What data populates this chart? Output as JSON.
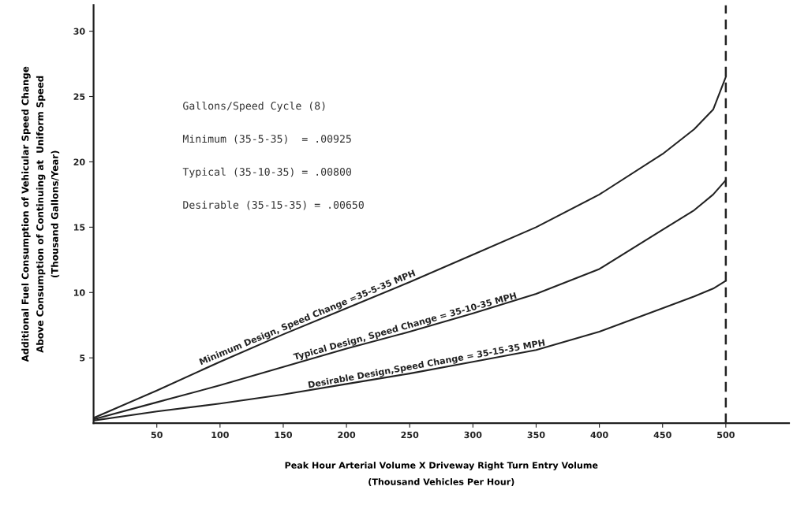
{
  "chart_data": {
    "type": "line",
    "xlabel": "Peak Hour Arterial Volume X Driveway Right Turn Entry Volume\n(Thousand Vehicles Per Hour)",
    "ylabel": "Additional Fuel Consumption of Vehicular Speed Change\nAbove Consumption of Continuing at  Uniform Speed\n(Thousand Gallons/Year)",
    "x": [
      0,
      50,
      100,
      150,
      200,
      250,
      300,
      350,
      400,
      450,
      475,
      490,
      500
    ],
    "series": [
      {
        "name": "Minimum Design, Speed Change =35-5-35 MPH",
        "color": "#222222",
        "values": [
          0.4,
          2.5,
          4.7,
          6.8,
          8.8,
          10.8,
          12.9,
          15.0,
          17.5,
          20.6,
          22.5,
          24.0,
          26.5
        ]
      },
      {
        "name": "Typical Design, Speed Change = 35-10-35 MPH",
        "color": "#222222",
        "values": [
          0.3,
          1.6,
          2.9,
          4.3,
          5.7,
          7.0,
          8.4,
          9.9,
          11.8,
          14.8,
          16.3,
          17.5,
          18.6
        ]
      },
      {
        "name": "Desirable Design,Speed Change = 35-15-35 MPH",
        "color": "#222222",
        "values": [
          0.2,
          0.9,
          1.5,
          2.2,
          3.0,
          3.8,
          4.7,
          5.6,
          7.0,
          8.8,
          9.7,
          10.3,
          10.9
        ]
      }
    ],
    "annotations": [
      "Gallons/Speed Cycle (8)",
      "Minimum (35-5-35)  = .00925",
      "Typical (35-10-35) = .00800",
      "Desirable (35-15-35) = .00650"
    ],
    "ref_lines": [
      {
        "axis": "x",
        "value": 500,
        "color": "#222222",
        "line_style": "dashed"
      }
    ],
    "xlim": [
      0,
      550
    ],
    "ylim": [
      0,
      32
    ],
    "xticks": [
      50,
      100,
      150,
      200,
      250,
      300,
      350,
      400,
      450,
      500
    ],
    "yticks": [
      5,
      10,
      15,
      20,
      25,
      30
    ],
    "grid": false,
    "legend": false,
    "marker": "none",
    "line_style": "solid"
  }
}
